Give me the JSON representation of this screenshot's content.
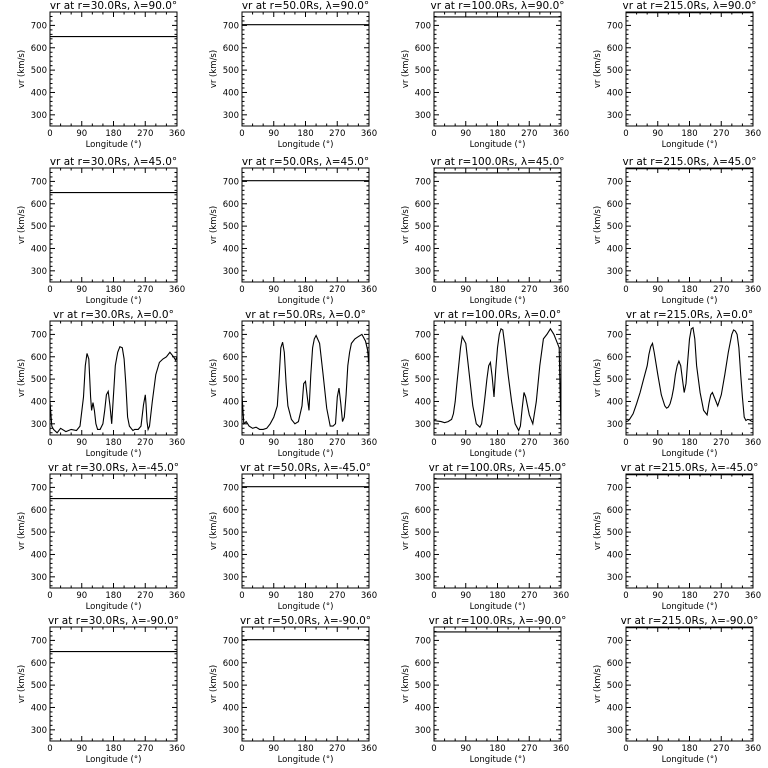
{
  "chart_data": [
    {
      "type": "line",
      "title": "vr at r=30.0Rs, λ=90.0°",
      "xlabel": "Longitude (°)",
      "ylabel": "vr (km/s)",
      "xlim": [
        0,
        360
      ],
      "ylim": [
        250,
        760
      ],
      "x": [
        0,
        360
      ],
      "y": [
        650,
        650
      ]
    },
    {
      "type": "line",
      "title": "vr at r=50.0Rs, λ=90.0°",
      "xlabel": "Longitude (°)",
      "ylabel": "vr (km/s)",
      "xlim": [
        0,
        360
      ],
      "ylim": [
        250,
        760
      ],
      "x": [
        0,
        360
      ],
      "y": [
        703,
        703
      ]
    },
    {
      "type": "line",
      "title": "vr at r=100.0Rs, λ=90.0°",
      "xlabel": "Longitude (°)",
      "ylabel": "vr (km/s)",
      "xlim": [
        0,
        360
      ],
      "ylim": [
        250,
        760
      ],
      "x": [
        0,
        360
      ],
      "y": [
        738,
        738
      ]
    },
    {
      "type": "line",
      "title": "vr at r=215.0Rs, λ=90.0°",
      "xlabel": "Longitude (°)",
      "ylabel": "vr (km/s)",
      "xlim": [
        0,
        360
      ],
      "ylim": [
        250,
        760
      ],
      "x": [
        0,
        360
      ],
      "y": [
        757,
        757
      ]
    },
    {
      "type": "line",
      "title": "vr at r=30.0Rs, λ=45.0°",
      "xlabel": "Longitude (°)",
      "ylabel": "vr (km/s)",
      "xlim": [
        0,
        360
      ],
      "ylim": [
        250,
        760
      ],
      "x": [
        0,
        360
      ],
      "y": [
        650,
        650
      ]
    },
    {
      "type": "line",
      "title": "vr at r=50.0Rs, λ=45.0°",
      "xlabel": "Longitude (°)",
      "ylabel": "vr (km/s)",
      "xlim": [
        0,
        360
      ],
      "ylim": [
        250,
        760
      ],
      "x": [
        0,
        360
      ],
      "y": [
        703,
        703
      ]
    },
    {
      "type": "line",
      "title": "vr at r=100.0Rs, λ=45.0°",
      "xlabel": "Longitude (°)",
      "ylabel": "vr (km/s)",
      "xlim": [
        0,
        360
      ],
      "ylim": [
        250,
        760
      ],
      "x": [
        0,
        360
      ],
      "y": [
        738,
        738
      ]
    },
    {
      "type": "line",
      "title": "vr at r=215.0Rs, λ=45.0°",
      "xlabel": "Longitude (°)",
      "ylabel": "vr (km/s)",
      "xlim": [
        0,
        360
      ],
      "ylim": [
        250,
        760
      ],
      "x": [
        0,
        360
      ],
      "y": [
        757,
        757
      ]
    },
    {
      "type": "line",
      "title": "vr at r=30.0Rs, λ=0.0°",
      "xlabel": "Longitude (°)",
      "ylabel": "vr (km/s)",
      "xlim": [
        0,
        360
      ],
      "ylim": [
        250,
        760
      ],
      "x": [
        0,
        5,
        10,
        20,
        30,
        45,
        60,
        75,
        85,
        95,
        100,
        105,
        110,
        115,
        118,
        122,
        126,
        130,
        135,
        142,
        150,
        155,
        160,
        165,
        170,
        175,
        180,
        185,
        192,
        198,
        205,
        210,
        215,
        220,
        225,
        230,
        235,
        240,
        250,
        258,
        265,
        270,
        272,
        275,
        278,
        282,
        290,
        300,
        310,
        320,
        330,
        340,
        350,
        356,
        360
      ],
      "y": [
        400,
        290,
        275,
        260,
        280,
        265,
        275,
        270,
        290,
        420,
        560,
        615,
        590,
        420,
        360,
        395,
        360,
        300,
        275,
        275,
        300,
        360,
        430,
        445,
        380,
        300,
        430,
        560,
        620,
        645,
        640,
        590,
        480,
        330,
        290,
        280,
        270,
        275,
        275,
        290,
        385,
        430,
        390,
        310,
        275,
        290,
        400,
        520,
        575,
        590,
        600,
        620,
        600,
        585,
        600
      ]
    },
    {
      "type": "line",
      "title": "vr at r=50.0Rs, λ=0.0°",
      "xlabel": "Longitude (°)",
      "ylabel": "vr (km/s)",
      "xlim": [
        0,
        360
      ],
      "ylim": [
        250,
        760
      ],
      "x": [
        0,
        5,
        12,
        20,
        30,
        40,
        50,
        60,
        70,
        80,
        90,
        100,
        105,
        110,
        115,
        120,
        125,
        130,
        140,
        150,
        160,
        170,
        175,
        180,
        185,
        190,
        195,
        200,
        205,
        210,
        220,
        230,
        240,
        250,
        258,
        265,
        270,
        275,
        280,
        285,
        290,
        295,
        300,
        305,
        310,
        320,
        330,
        340,
        350,
        356,
        360
      ],
      "y": [
        430,
        300,
        310,
        290,
        280,
        285,
        275,
        275,
        280,
        300,
        330,
        380,
        500,
        640,
        665,
        620,
        480,
        380,
        320,
        300,
        310,
        380,
        480,
        490,
        420,
        360,
        520,
        640,
        680,
        695,
        660,
        520,
        370,
        290,
        290,
        300,
        420,
        460,
        390,
        310,
        330,
        430,
        560,
        620,
        660,
        680,
        690,
        700,
        670,
        630,
        560
      ]
    },
    {
      "type": "line",
      "title": "vr at r=100.0Rs, λ=0.0°",
      "xlabel": "Longitude (°)",
      "ylabel": "vr (km/s)",
      "xlim": [
        0,
        360
      ],
      "ylim": [
        250,
        760
      ],
      "x": [
        0,
        10,
        20,
        30,
        40,
        50,
        55,
        60,
        65,
        70,
        75,
        80,
        90,
        100,
        110,
        120,
        130,
        135,
        140,
        145,
        150,
        155,
        160,
        165,
        170,
        175,
        180,
        185,
        190,
        195,
        200,
        210,
        220,
        230,
        240,
        245,
        250,
        255,
        260,
        270,
        280,
        290,
        300,
        310,
        320,
        330,
        340,
        345,
        350,
        355,
        358,
        360
      ],
      "y": [
        315,
        312,
        310,
        305,
        310,
        320,
        345,
        400,
        480,
        560,
        640,
        690,
        660,
        520,
        380,
        300,
        285,
        300,
        360,
        430,
        500,
        560,
        575,
        510,
        420,
        540,
        640,
        700,
        725,
        720,
        660,
        520,
        400,
        300,
        270,
        290,
        370,
        440,
        420,
        340,
        300,
        400,
        560,
        680,
        700,
        725,
        700,
        680,
        660,
        640,
        400,
        290
      ]
    },
    {
      "type": "line",
      "title": "vr at r=215.0Rs, λ=0.0°",
      "xlabel": "Longitude (°)",
      "ylabel": "vr (km/s)",
      "xlim": [
        0,
        360
      ],
      "ylim": [
        250,
        760
      ],
      "x": [
        0,
        5,
        10,
        20,
        30,
        40,
        50,
        60,
        65,
        70,
        75,
        80,
        90,
        100,
        110,
        115,
        120,
        125,
        130,
        135,
        140,
        145,
        150,
        155,
        160,
        165,
        170,
        175,
        180,
        185,
        190,
        195,
        200,
        210,
        220,
        230,
        235,
        240,
        245,
        250,
        255,
        260,
        270,
        280,
        290,
        300,
        305,
        310,
        315,
        320,
        325,
        330,
        335,
        340,
        345,
        350,
        355,
        360
      ],
      "y": [
        310,
        312,
        320,
        345,
        390,
        440,
        500,
        560,
        610,
        645,
        660,
        620,
        520,
        430,
        380,
        370,
        375,
        390,
        420,
        460,
        520,
        560,
        580,
        560,
        500,
        440,
        480,
        580,
        680,
        725,
        730,
        680,
        560,
        440,
        360,
        340,
        390,
        430,
        440,
        420,
        400,
        380,
        430,
        520,
        620,
        700,
        720,
        715,
        700,
        640,
        520,
        420,
        330,
        315,
        320,
        318,
        312,
        310
      ]
    },
    {
      "type": "line",
      "title": "vr at r=30.0Rs, λ=-45.0°",
      "xlabel": "Longitude (°)",
      "ylabel": "vr (km/s)",
      "xlim": [
        0,
        360
      ],
      "ylim": [
        250,
        760
      ],
      "x": [
        0,
        360
      ],
      "y": [
        650,
        650
      ]
    },
    {
      "type": "line",
      "title": "vr at r=50.0Rs, λ=-45.0°",
      "xlabel": "Longitude (°)",
      "ylabel": "vr (km/s)",
      "xlim": [
        0,
        360
      ],
      "ylim": [
        250,
        760
      ],
      "x": [
        0,
        360
      ],
      "y": [
        703,
        703
      ]
    },
    {
      "type": "line",
      "title": "vr at r=100.0Rs, λ=-45.0°",
      "xlabel": "Longitude (°)",
      "ylabel": "vr (km/s)",
      "xlim": [
        0,
        360
      ],
      "ylim": [
        250,
        760
      ],
      "x": [
        0,
        360
      ],
      "y": [
        738,
        738
      ]
    },
    {
      "type": "line",
      "title": "vr at r=215.0Rs, λ=-45.0°",
      "xlabel": "Longitude (°)",
      "ylabel": "vr (km/s)",
      "xlim": [
        0,
        360
      ],
      "ylim": [
        250,
        760
      ],
      "x": [
        0,
        360
      ],
      "y": [
        757,
        757
      ]
    },
    {
      "type": "line",
      "title": "vr at r=30.0Rs, λ=-90.0°",
      "xlabel": "Longitude (°)",
      "ylabel": "vr (km/s)",
      "xlim": [
        0,
        360
      ],
      "ylim": [
        250,
        760
      ],
      "x": [
        0,
        360
      ],
      "y": [
        650,
        650
      ]
    },
    {
      "type": "line",
      "title": "vr at r=50.0Rs, λ=-90.0°",
      "xlabel": "Longitude (°)",
      "ylabel": "vr (km/s)",
      "xlim": [
        0,
        360
      ],
      "ylim": [
        250,
        760
      ],
      "x": [
        0,
        360
      ],
      "y": [
        703,
        703
      ]
    },
    {
      "type": "line",
      "title": "vr at r=100.0Rs, λ=-90.0°",
      "xlabel": "Longitude (°)",
      "ylabel": "vr (km/s)",
      "xlim": [
        0,
        360
      ],
      "ylim": [
        250,
        760
      ],
      "x": [
        0,
        360
      ],
      "y": [
        738,
        738
      ]
    },
    {
      "type": "line",
      "title": "vr at r=215.0Rs, λ=-90.0°",
      "xlabel": "Longitude (°)",
      "ylabel": "vr (km/s)",
      "xlim": [
        0,
        360
      ],
      "ylim": [
        250,
        760
      ],
      "x": [
        0,
        360
      ],
      "y": [
        757,
        757
      ]
    }
  ],
  "axes": {
    "x_ticks": [
      0,
      90,
      180,
      270,
      360
    ],
    "x_tick_labels": [
      "0",
      "90",
      "180",
      "270",
      "360"
    ],
    "y_ticks": [
      300,
      400,
      500,
      600,
      700
    ],
    "y_tick_labels": [
      "300",
      "400",
      "500",
      "600",
      "700"
    ]
  }
}
